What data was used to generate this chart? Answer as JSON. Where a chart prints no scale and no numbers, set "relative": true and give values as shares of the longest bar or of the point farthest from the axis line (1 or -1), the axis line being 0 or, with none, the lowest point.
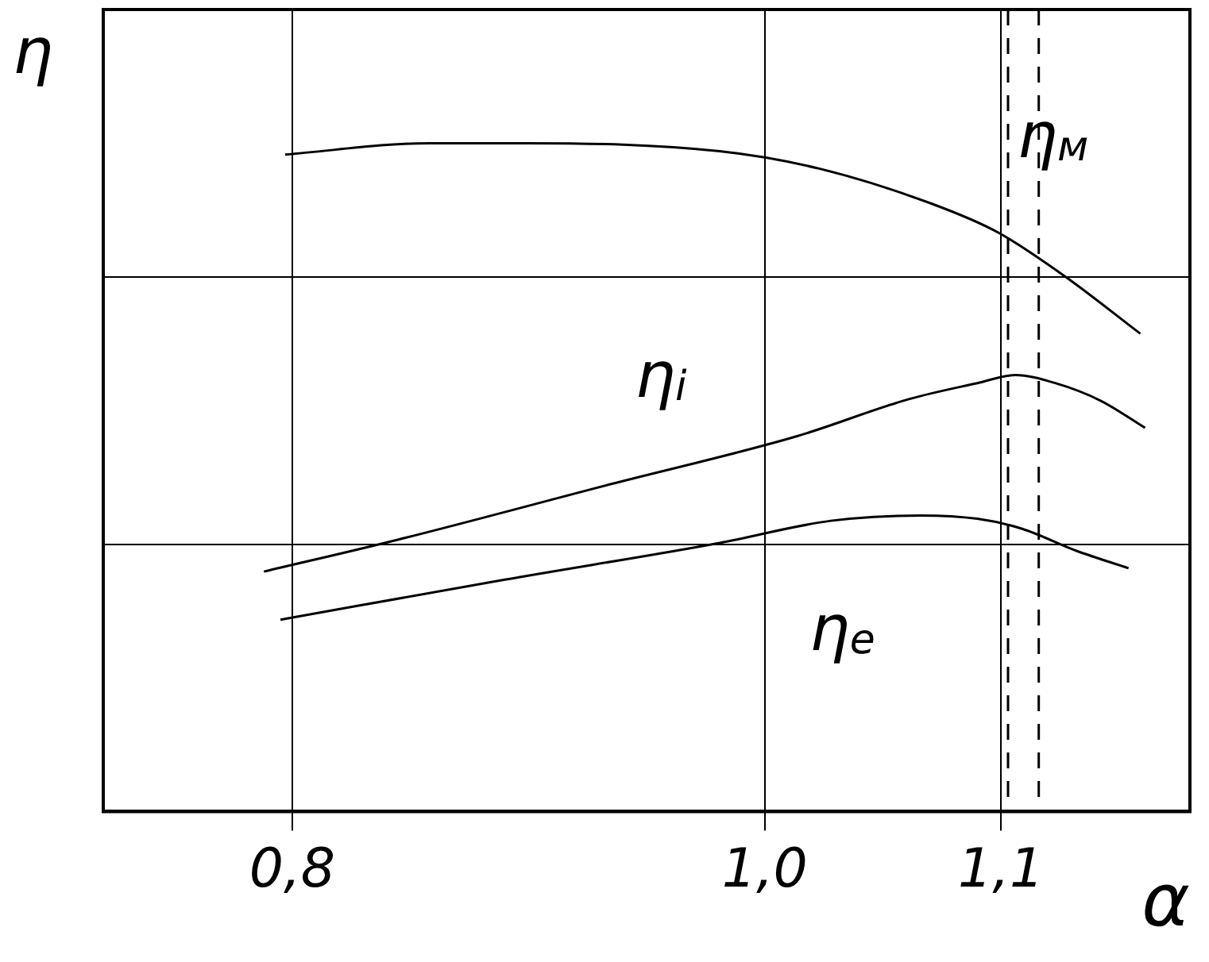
{
  "chart_data": {
    "type": "line",
    "relative": true,
    "xlabel": "α",
    "ylabel": "η",
    "xlim": [
      0.72,
      1.18
    ],
    "xticks": [
      {
        "value": 0.8,
        "label": "0,8"
      },
      {
        "value": 1.0,
        "label": "1,0"
      },
      {
        "value": 1.1,
        "label": "1,1"
      }
    ],
    "grid": true,
    "legend": false,
    "marker": "none",
    "line_style": "solid",
    "series": [
      {
        "name": "η$_{м}$",
        "color": "#000000",
        "x": [
          0.797,
          0.858,
          0.899,
          0.981,
          1.023,
          1.071,
          1.099,
          1.127,
          1.159
        ],
        "values": [
          0.983,
          1,
          1,
          0.988,
          0.962,
          0.909,
          0.866,
          0.801,
          0.715
        ]
      },
      {
        "name": "η$_{i}$",
        "color": "#000000",
        "x": [
          0.788,
          0.845,
          0.935,
          1.014,
          1.061,
          1.09,
          1.106,
          1.123,
          1.142,
          1.161
        ],
        "values": [
          0.359,
          0.407,
          0.49,
          0.562,
          0.617,
          0.641,
          0.653,
          0.641,
          0.615,
          0.574
        ]
      },
      {
        "name": "η$_{e}$",
        "color": "#000000",
        "x": [
          0.795,
          0.89,
          0.981,
          1.028,
          1.066,
          1.09,
          1.109,
          1.132,
          1.154
        ],
        "values": [
          0.287,
          0.347,
          0.402,
          0.435,
          0.443,
          0.438,
          0.423,
          0.39,
          0.364
        ]
      }
    ],
    "ref_lines": [
      {
        "axis": "x",
        "value": 1.103,
        "color": "#000000",
        "line_style": "dashed"
      },
      {
        "axis": "x",
        "value": 1.116,
        "color": "#000000",
        "line_style": "dashed"
      }
    ]
  }
}
